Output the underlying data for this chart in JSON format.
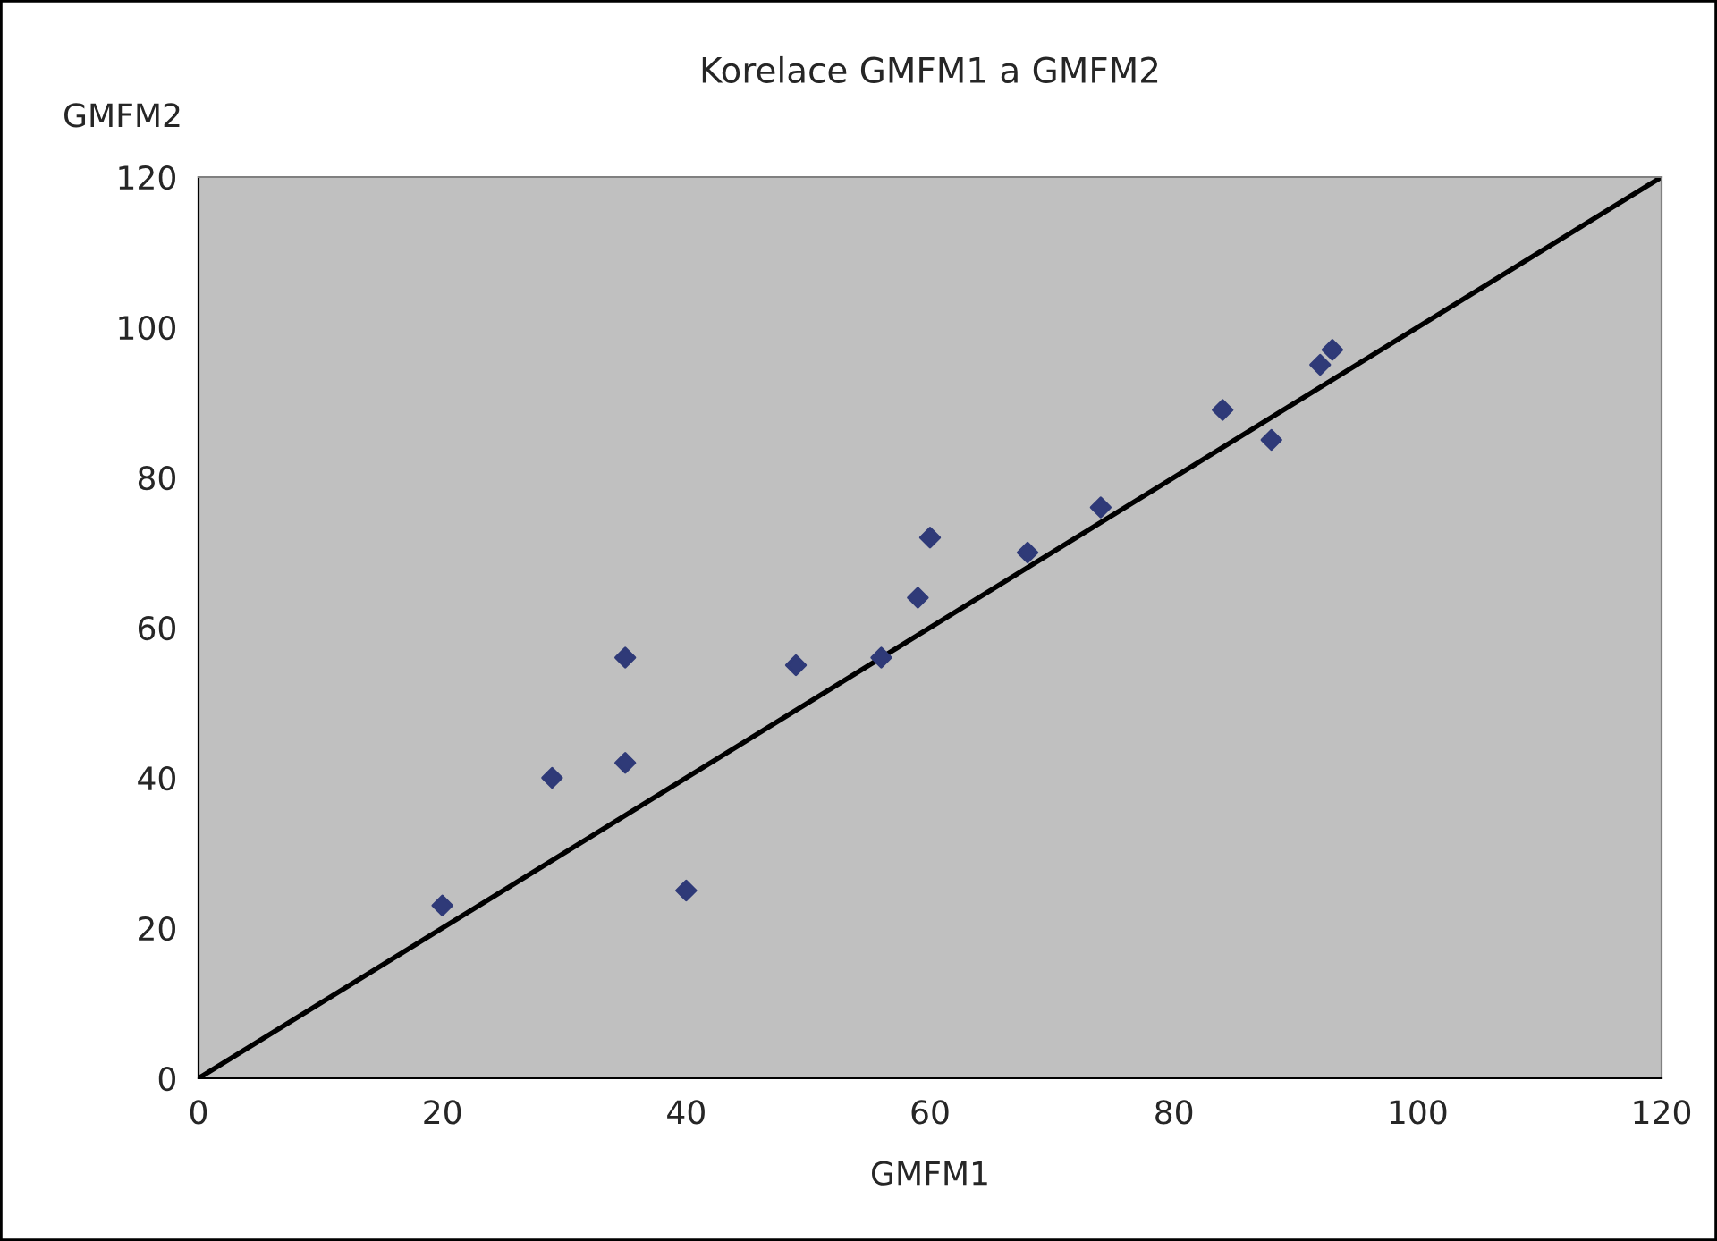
{
  "chart_data": {
    "type": "scatter",
    "title": "Korelace GMFM1 a GMFM2",
    "xlabel": "GMFM1",
    "ylabel": "GMFM2",
    "series": [
      {
        "color": "#2f3a78",
        "marker": "diamond",
        "x": [
          20,
          29,
          35,
          35,
          40,
          49,
          56,
          59,
          60,
          68,
          74,
          84,
          88,
          92,
          93
        ],
        "values": [
          23,
          40,
          42,
          56,
          25,
          55,
          56,
          64,
          72,
          70,
          76,
          89,
          85,
          95,
          97
        ]
      },
      {
        "type": "line",
        "color": "#000000",
        "marker": "none",
        "line_style": "solid",
        "x": [
          0,
          120
        ],
        "values": [
          0,
          120
        ]
      }
    ],
    "xlim": [
      0,
      120
    ],
    "ylim": [
      0,
      120
    ],
    "xticks": [
      0,
      20,
      40,
      60,
      80,
      100,
      120
    ],
    "yticks": [
      0,
      20,
      40,
      60,
      80,
      100,
      120
    ],
    "grid": false,
    "legend": false
  }
}
